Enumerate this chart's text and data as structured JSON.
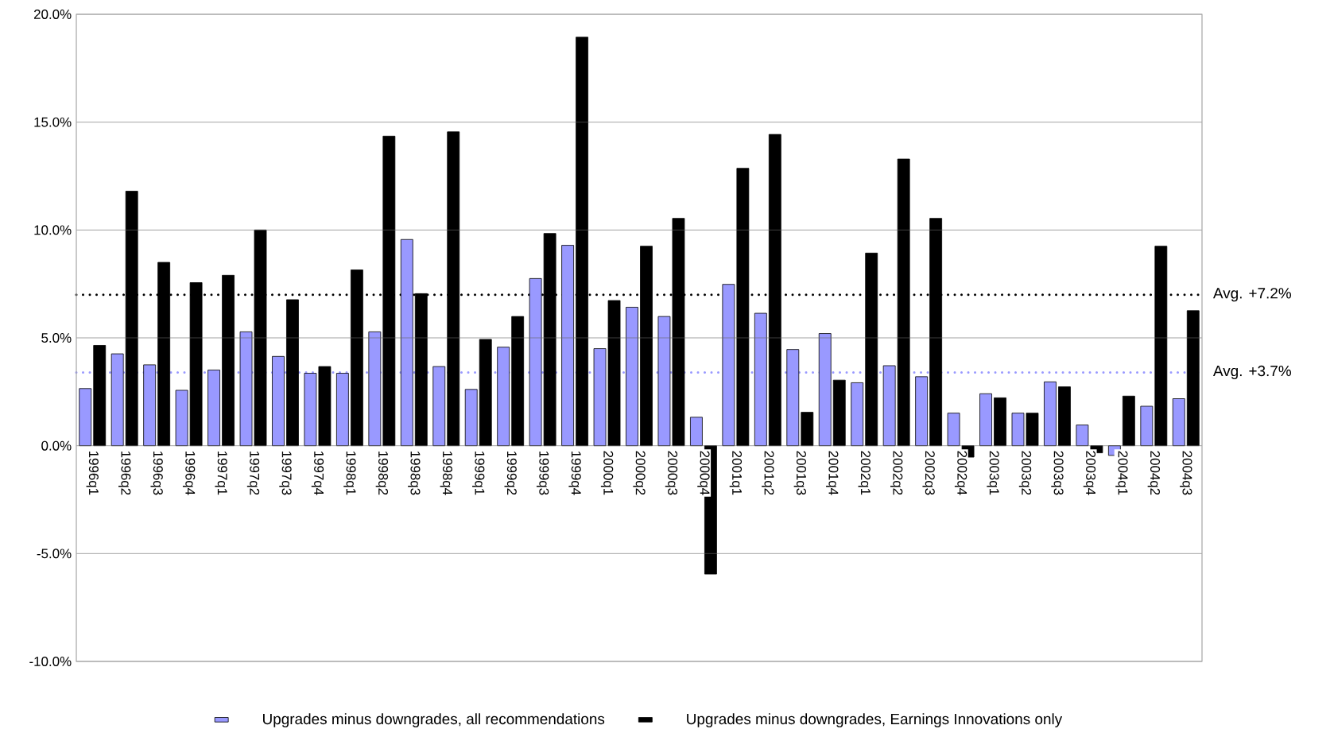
{
  "chart_data": {
    "type": "bar",
    "categories": [
      "1996q1",
      "1996q2",
      "1996q3",
      "1996q4",
      "1997q1",
      "1997q2",
      "1997q3",
      "1997q4",
      "1998q1",
      "1998q2",
      "1998q3",
      "1998q4",
      "1999q1",
      "1999q2",
      "1999q3",
      "1999q4",
      "2000q1",
      "2000q2",
      "2000q3",
      "2000q4",
      "2001q1",
      "2001q2",
      "2001q3",
      "2001q4",
      "2002q1",
      "2002q2",
      "2002q3",
      "2002q4",
      "2003q1",
      "2003q2",
      "2003q3",
      "2003q4",
      "2004q1",
      "2004q2",
      "2004q3"
    ],
    "series": [
      {
        "name": "Upgrades minus downgrades, all recommendations",
        "color": "#9999ff",
        "values": [
          2.65,
          4.26,
          3.75,
          2.57,
          3.51,
          5.28,
          4.14,
          3.36,
          3.36,
          5.28,
          9.56,
          3.67,
          2.61,
          4.57,
          7.75,
          9.29,
          4.5,
          6.42,
          5.99,
          1.32,
          7.48,
          6.14,
          4.46,
          5.2,
          2.92,
          3.71,
          3.2,
          1.51,
          2.41,
          1.51,
          2.96,
          0.96,
          -0.45,
          1.83,
          2.18
        ]
      },
      {
        "name": "Upgrades minus downgrades, Earnings Innovations only",
        "color": "#000000",
        "values": [
          4.65,
          11.8,
          8.5,
          7.56,
          7.9,
          10.0,
          6.77,
          3.67,
          8.15,
          14.35,
          7.05,
          14.55,
          4.93,
          5.99,
          9.84,
          18.94,
          6.73,
          9.25,
          10.54,
          -5.95,
          12.86,
          14.43,
          1.55,
          3.04,
          8.93,
          13.29,
          10.54,
          -0.53,
          2.22,
          1.51,
          2.73,
          -0.33,
          2.3,
          9.25,
          6.26
        ]
      }
    ],
    "ylim": [
      -10,
      20
    ],
    "yticks": [
      {
        "value": -10,
        "label": "-10.0%"
      },
      {
        "value": -5,
        "label": "-5.0%"
      },
      {
        "value": 0,
        "label": "0.0%"
      },
      {
        "value": 5,
        "label": "5.0%"
      },
      {
        "value": 10,
        "label": "10.0%"
      },
      {
        "value": 15,
        "label": "15.0%"
      },
      {
        "value": 20,
        "label": "20.0%"
      }
    ],
    "grid": "y",
    "legend": "bottom",
    "ref_lines": [
      {
        "axis": "y",
        "value": 7.0,
        "label": "Avg. +7.2%",
        "color": "#000000",
        "line_style": "dotted"
      },
      {
        "axis": "y",
        "value": 3.4,
        "label": "Avg. +3.7%",
        "color": "#9999ff",
        "line_style": "dotted"
      }
    ]
  }
}
